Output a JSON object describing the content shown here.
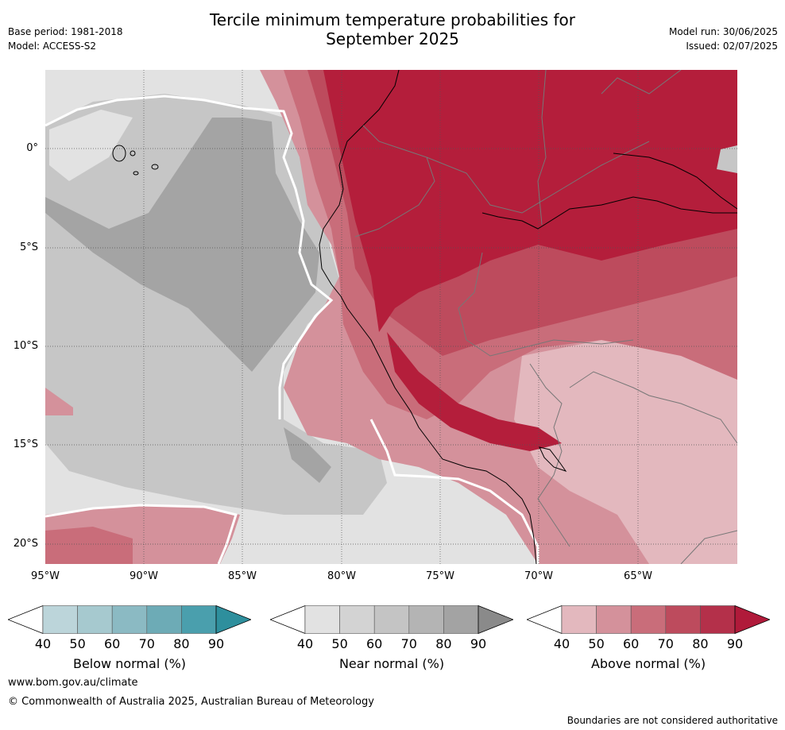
{
  "header": {
    "base_period": "Base period: 1981-2018",
    "model": "Model: ACCESS-S2",
    "title_line1": "Tercile minimum temperature probabilities for",
    "title_line2": "September 2025",
    "model_run": "Model run: 30/06/2025",
    "issued": "Issued: 02/07/2025"
  },
  "map": {
    "lat_labels": [
      "0°",
      "5°S",
      "10°S",
      "15°S",
      "20°S"
    ],
    "lon_labels": [
      "95°W",
      "90°W",
      "85°W",
      "80°W",
      "75°W",
      "70°W",
      "65°W"
    ],
    "colors": {
      "ocean_light": "#e2e2e2",
      "ocean_mid": "#c6c6c6",
      "ocean_dark": "#a4a4a4",
      "red_1": "#e3b8be",
      "red_2": "#d4919b",
      "red_3": "#c96d7a",
      "red_4": "#bd4b5d",
      "red_5": "#b41e3b"
    }
  },
  "colorbars": [
    {
      "label": "Below normal (%)",
      "ticks": [
        "40",
        "50",
        "60",
        "70",
        "80",
        "90"
      ],
      "colors": [
        "#ffffff",
        "#bcd5da",
        "#a6c9cf",
        "#8bbac3",
        "#6dabb6",
        "#4a9fad",
        "#2e8f9d"
      ]
    },
    {
      "label": "Near normal (%)",
      "ticks": [
        "40",
        "50",
        "60",
        "70",
        "80",
        "90"
      ],
      "colors": [
        "#ffffff",
        "#e2e2e2",
        "#d3d3d3",
        "#c4c4c4",
        "#b4b4b4",
        "#a3a3a3",
        "#8a8a8a"
      ]
    },
    {
      "label": "Above normal (%)",
      "ticks": [
        "40",
        "50",
        "60",
        "70",
        "80",
        "90"
      ],
      "colors": [
        "#ffffff",
        "#e3b8be",
        "#d4919b",
        "#c96d7a",
        "#bd4b5d",
        "#b4304a",
        "#b01a3a"
      ]
    }
  ],
  "footer": {
    "website": "www.bom.gov.au/climate",
    "copyright": "© Commonwealth of Australia 2025, Australian Bureau of Meteorology",
    "disclaimer": "Boundaries are not considered authoritative"
  }
}
